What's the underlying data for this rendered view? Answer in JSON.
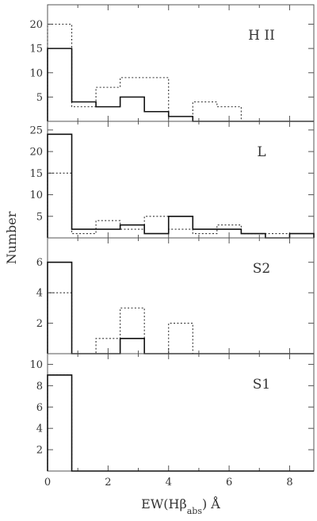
{
  "chart_data": {
    "type": "histogram",
    "xlabel": "EW(Hβ",
    "xlabel_sub": "abs",
    "xlabel_unit": ") Å",
    "ylabel": "Number",
    "xlim": [
      0,
      8.8
    ],
    "x_ticks": [
      0,
      2,
      4,
      6,
      8
    ],
    "bin_edges": [
      0,
      0.8,
      1.6,
      2.4,
      3.2,
      4.0,
      4.8,
      5.6,
      6.4,
      7.2,
      8.0,
      8.8
    ],
    "panels": [
      {
        "label": "H II",
        "ylim": [
          0,
          24
        ],
        "y_ticks": [
          5,
          10,
          15,
          20
        ],
        "solid": [
          15,
          4,
          3,
          5,
          2,
          1,
          0,
          0,
          0,
          0,
          0
        ],
        "dotted": [
          20,
          3,
          7,
          9,
          9,
          0,
          4,
          3,
          0,
          0,
          0
        ]
      },
      {
        "label": "L",
        "ylim": [
          0,
          27
        ],
        "y_ticks": [
          5,
          10,
          15,
          20,
          25
        ],
        "solid": [
          24,
          2,
          2,
          3,
          1,
          5,
          2,
          2,
          1,
          0,
          1
        ],
        "dotted": [
          15,
          1,
          4,
          2,
          5,
          2,
          1,
          3,
          1,
          1,
          0
        ]
      },
      {
        "label": "S2",
        "ylim": [
          0,
          7.6
        ],
        "y_ticks": [
          2,
          4,
          6
        ],
        "solid": [
          6,
          0,
          0,
          1,
          0,
          0,
          0,
          0,
          0,
          0,
          0
        ],
        "dotted": [
          4,
          0,
          1,
          3,
          0,
          2,
          0,
          0,
          0,
          0,
          0
        ]
      },
      {
        "label": "S1",
        "ylim": [
          0,
          11
        ],
        "y_ticks": [
          2,
          4,
          6,
          8,
          10
        ],
        "solid": [
          9,
          0,
          0,
          0,
          0,
          0,
          0,
          0,
          0,
          0,
          0
        ],
        "dotted": [
          9,
          0,
          0,
          0,
          0,
          0,
          0,
          0,
          0,
          0,
          0
        ]
      }
    ]
  }
}
